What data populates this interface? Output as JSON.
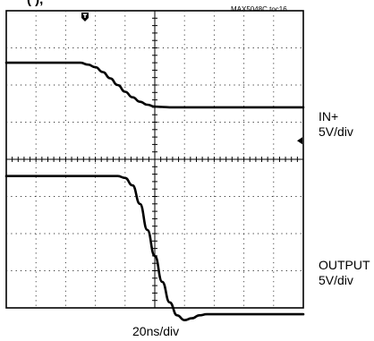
{
  "header": {
    "clipped_heading": "(           ), ",
    "figure_tag": "MAX5048C toc16"
  },
  "chart_data": {
    "type": "line",
    "title": "",
    "xlabel": "20ns/div",
    "ylabel": "",
    "grid": true,
    "divisions": {
      "x": 10,
      "y": 8
    },
    "x_units": "ns",
    "xlim": [
      0,
      200
    ],
    "series": [
      {
        "name": "IN+",
        "scale": "5V/div",
        "trace_color": "#000000",
        "x": [
          0,
          50,
          55,
          60,
          65,
          70,
          75,
          80,
          85,
          90,
          95,
          100,
          105,
          110,
          115,
          120,
          200
        ],
        "y": [
          2.6,
          2.6,
          2.55,
          2.48,
          2.35,
          2.18,
          2.0,
          1.82,
          1.67,
          1.55,
          1.47,
          1.42,
          1.41,
          1.4,
          1.4,
          1.4,
          1.4
        ]
      },
      {
        "name": "OUTPUT",
        "scale": "5V/div",
        "trace_color": "#000000",
        "x": [
          0,
          75,
          80,
          85,
          90,
          95,
          100,
          105,
          110,
          115,
          120,
          125,
          130,
          135,
          140,
          150,
          160,
          200
        ],
        "y": [
          -0.45,
          -0.45,
          -0.5,
          -0.7,
          -1.2,
          -1.9,
          -2.6,
          -3.3,
          -3.85,
          -4.2,
          -4.33,
          -4.28,
          -4.2,
          -4.17,
          -4.17,
          -4.17,
          -4.17,
          -4.17
        ]
      }
    ]
  }
}
